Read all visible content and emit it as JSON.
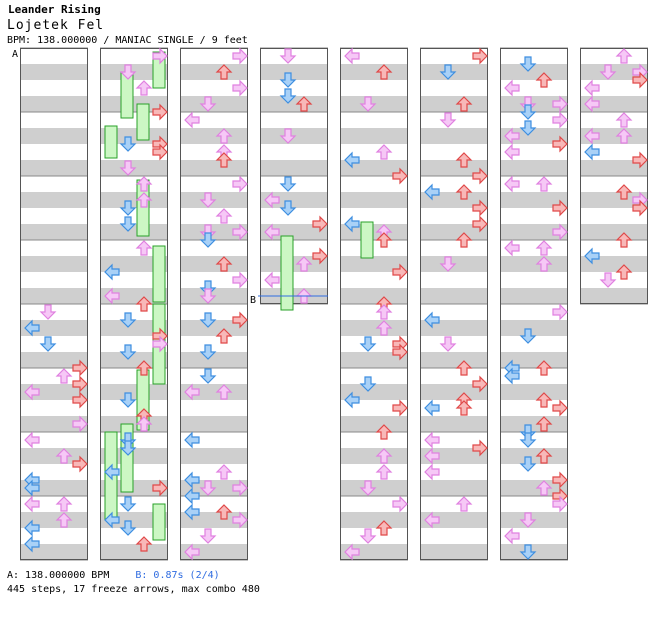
{
  "header": {
    "title": "Leander Rising",
    "artist": "Lojetek Fel",
    "info": "BPM: 138.000000 / MANIAC SINGLE / 9 feet"
  },
  "footer": {
    "bpm_a": "A: 138.000000 BPM",
    "bpm_b": "B: 0.87s (2/4)",
    "stats": "445 steps, 17 freeze arrows, max combo 480"
  },
  "markers": {
    "a": "A",
    "b": "B"
  },
  "colors": {
    "left": "#3d8ee0",
    "right": "#e04848",
    "up": "#e04848",
    "down": "#3d8ee0",
    "eighth": "#c050c0",
    "freeze": "#28a028"
  },
  "chart_data": {
    "type": "step-chart",
    "mode": "MANIAC SINGLE",
    "difficulty_feet": 9,
    "bpm": 138.0,
    "measures_per_column": 4,
    "columns": 8,
    "total_steps": 445,
    "freeze_arrows": 17,
    "max_combo": 480
  }
}
